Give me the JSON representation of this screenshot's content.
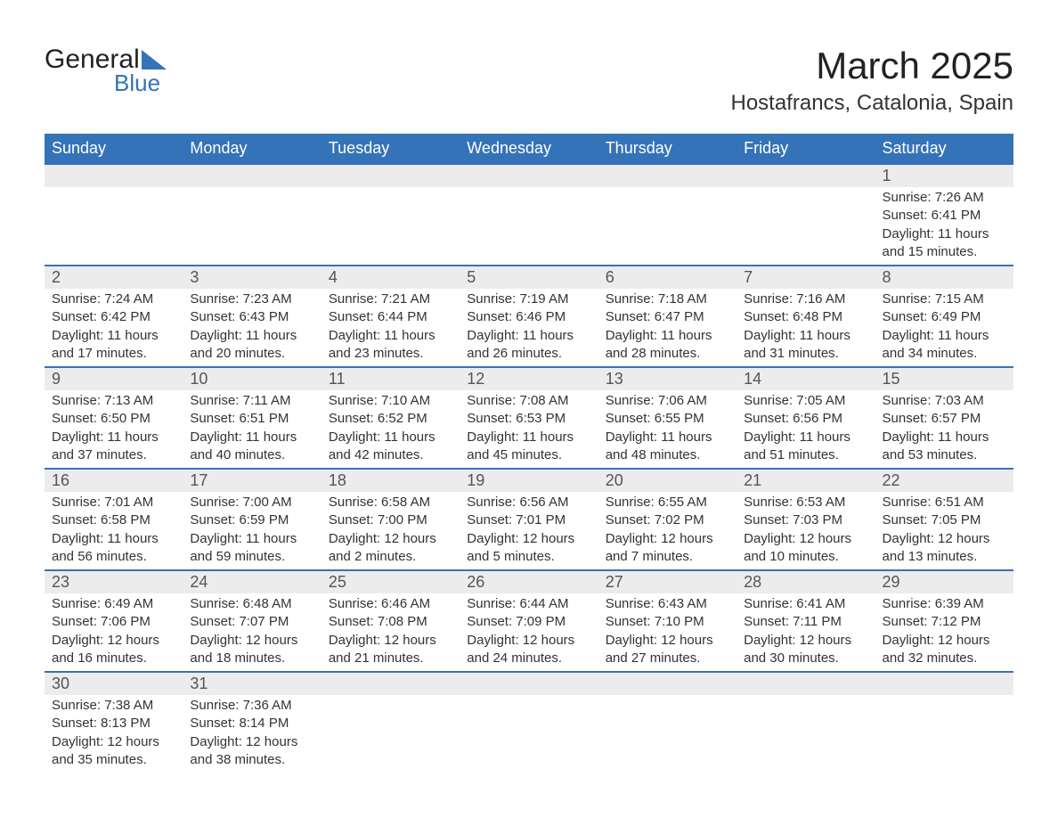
{
  "brand": {
    "word1": "General",
    "word2": "Blue",
    "color_primary": "#3573b8",
    "color_text": "#222222"
  },
  "header": {
    "title": "March 2025",
    "subtitle": "Hostafrancs, Catalonia, Spain",
    "title_fontsize": 42,
    "subtitle_fontsize": 24
  },
  "colors": {
    "header_bg": "#3573b8",
    "header_text": "#ffffff",
    "daynum_bg": "#ececec",
    "row_border": "#3573b8",
    "body_text": "#333333"
  },
  "typography": {
    "font_family": "Arial",
    "th_fontsize": 18,
    "daynum_fontsize": 18,
    "cell_fontsize": 15
  },
  "calendar": {
    "days_of_week": [
      "Sunday",
      "Monday",
      "Tuesday",
      "Wednesday",
      "Thursday",
      "Friday",
      "Saturday"
    ],
    "weeks": [
      [
        {
          "day": "",
          "sunrise": "",
          "sunset": "",
          "daylight": ""
        },
        {
          "day": "",
          "sunrise": "",
          "sunset": "",
          "daylight": ""
        },
        {
          "day": "",
          "sunrise": "",
          "sunset": "",
          "daylight": ""
        },
        {
          "day": "",
          "sunrise": "",
          "sunset": "",
          "daylight": ""
        },
        {
          "day": "",
          "sunrise": "",
          "sunset": "",
          "daylight": ""
        },
        {
          "day": "",
          "sunrise": "",
          "sunset": "",
          "daylight": ""
        },
        {
          "day": "1",
          "sunrise": "Sunrise: 7:26 AM",
          "sunset": "Sunset: 6:41 PM",
          "daylight": "Daylight: 11 hours and 15 minutes."
        }
      ],
      [
        {
          "day": "2",
          "sunrise": "Sunrise: 7:24 AM",
          "sunset": "Sunset: 6:42 PM",
          "daylight": "Daylight: 11 hours and 17 minutes."
        },
        {
          "day": "3",
          "sunrise": "Sunrise: 7:23 AM",
          "sunset": "Sunset: 6:43 PM",
          "daylight": "Daylight: 11 hours and 20 minutes."
        },
        {
          "day": "4",
          "sunrise": "Sunrise: 7:21 AM",
          "sunset": "Sunset: 6:44 PM",
          "daylight": "Daylight: 11 hours and 23 minutes."
        },
        {
          "day": "5",
          "sunrise": "Sunrise: 7:19 AM",
          "sunset": "Sunset: 6:46 PM",
          "daylight": "Daylight: 11 hours and 26 minutes."
        },
        {
          "day": "6",
          "sunrise": "Sunrise: 7:18 AM",
          "sunset": "Sunset: 6:47 PM",
          "daylight": "Daylight: 11 hours and 28 minutes."
        },
        {
          "day": "7",
          "sunrise": "Sunrise: 7:16 AM",
          "sunset": "Sunset: 6:48 PM",
          "daylight": "Daylight: 11 hours and 31 minutes."
        },
        {
          "day": "8",
          "sunrise": "Sunrise: 7:15 AM",
          "sunset": "Sunset: 6:49 PM",
          "daylight": "Daylight: 11 hours and 34 minutes."
        }
      ],
      [
        {
          "day": "9",
          "sunrise": "Sunrise: 7:13 AM",
          "sunset": "Sunset: 6:50 PM",
          "daylight": "Daylight: 11 hours and 37 minutes."
        },
        {
          "day": "10",
          "sunrise": "Sunrise: 7:11 AM",
          "sunset": "Sunset: 6:51 PM",
          "daylight": "Daylight: 11 hours and 40 minutes."
        },
        {
          "day": "11",
          "sunrise": "Sunrise: 7:10 AM",
          "sunset": "Sunset: 6:52 PM",
          "daylight": "Daylight: 11 hours and 42 minutes."
        },
        {
          "day": "12",
          "sunrise": "Sunrise: 7:08 AM",
          "sunset": "Sunset: 6:53 PM",
          "daylight": "Daylight: 11 hours and 45 minutes."
        },
        {
          "day": "13",
          "sunrise": "Sunrise: 7:06 AM",
          "sunset": "Sunset: 6:55 PM",
          "daylight": "Daylight: 11 hours and 48 minutes."
        },
        {
          "day": "14",
          "sunrise": "Sunrise: 7:05 AM",
          "sunset": "Sunset: 6:56 PM",
          "daylight": "Daylight: 11 hours and 51 minutes."
        },
        {
          "day": "15",
          "sunrise": "Sunrise: 7:03 AM",
          "sunset": "Sunset: 6:57 PM",
          "daylight": "Daylight: 11 hours and 53 minutes."
        }
      ],
      [
        {
          "day": "16",
          "sunrise": "Sunrise: 7:01 AM",
          "sunset": "Sunset: 6:58 PM",
          "daylight": "Daylight: 11 hours and 56 minutes."
        },
        {
          "day": "17",
          "sunrise": "Sunrise: 7:00 AM",
          "sunset": "Sunset: 6:59 PM",
          "daylight": "Daylight: 11 hours and 59 minutes."
        },
        {
          "day": "18",
          "sunrise": "Sunrise: 6:58 AM",
          "sunset": "Sunset: 7:00 PM",
          "daylight": "Daylight: 12 hours and 2 minutes."
        },
        {
          "day": "19",
          "sunrise": "Sunrise: 6:56 AM",
          "sunset": "Sunset: 7:01 PM",
          "daylight": "Daylight: 12 hours and 5 minutes."
        },
        {
          "day": "20",
          "sunrise": "Sunrise: 6:55 AM",
          "sunset": "Sunset: 7:02 PM",
          "daylight": "Daylight: 12 hours and 7 minutes."
        },
        {
          "day": "21",
          "sunrise": "Sunrise: 6:53 AM",
          "sunset": "Sunset: 7:03 PM",
          "daylight": "Daylight: 12 hours and 10 minutes."
        },
        {
          "day": "22",
          "sunrise": "Sunrise: 6:51 AM",
          "sunset": "Sunset: 7:05 PM",
          "daylight": "Daylight: 12 hours and 13 minutes."
        }
      ],
      [
        {
          "day": "23",
          "sunrise": "Sunrise: 6:49 AM",
          "sunset": "Sunset: 7:06 PM",
          "daylight": "Daylight: 12 hours and 16 minutes."
        },
        {
          "day": "24",
          "sunrise": "Sunrise: 6:48 AM",
          "sunset": "Sunset: 7:07 PM",
          "daylight": "Daylight: 12 hours and 18 minutes."
        },
        {
          "day": "25",
          "sunrise": "Sunrise: 6:46 AM",
          "sunset": "Sunset: 7:08 PM",
          "daylight": "Daylight: 12 hours and 21 minutes."
        },
        {
          "day": "26",
          "sunrise": "Sunrise: 6:44 AM",
          "sunset": "Sunset: 7:09 PM",
          "daylight": "Daylight: 12 hours and 24 minutes."
        },
        {
          "day": "27",
          "sunrise": "Sunrise: 6:43 AM",
          "sunset": "Sunset: 7:10 PM",
          "daylight": "Daylight: 12 hours and 27 minutes."
        },
        {
          "day": "28",
          "sunrise": "Sunrise: 6:41 AM",
          "sunset": "Sunset: 7:11 PM",
          "daylight": "Daylight: 12 hours and 30 minutes."
        },
        {
          "day": "29",
          "sunrise": "Sunrise: 6:39 AM",
          "sunset": "Sunset: 7:12 PM",
          "daylight": "Daylight: 12 hours and 32 minutes."
        }
      ],
      [
        {
          "day": "30",
          "sunrise": "Sunrise: 7:38 AM",
          "sunset": "Sunset: 8:13 PM",
          "daylight": "Daylight: 12 hours and 35 minutes."
        },
        {
          "day": "31",
          "sunrise": "Sunrise: 7:36 AM",
          "sunset": "Sunset: 8:14 PM",
          "daylight": "Daylight: 12 hours and 38 minutes."
        },
        {
          "day": "",
          "sunrise": "",
          "sunset": "",
          "daylight": ""
        },
        {
          "day": "",
          "sunrise": "",
          "sunset": "",
          "daylight": ""
        },
        {
          "day": "",
          "sunrise": "",
          "sunset": "",
          "daylight": ""
        },
        {
          "day": "",
          "sunrise": "",
          "sunset": "",
          "daylight": ""
        },
        {
          "day": "",
          "sunrise": "",
          "sunset": "",
          "daylight": ""
        }
      ]
    ]
  }
}
